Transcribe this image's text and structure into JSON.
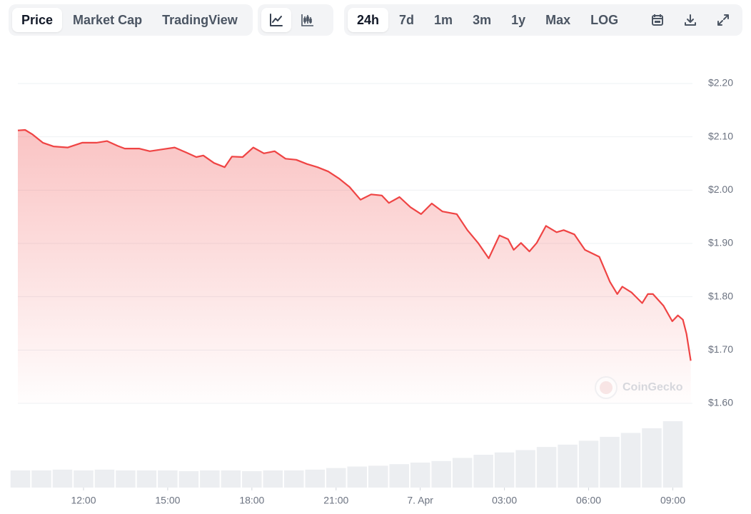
{
  "toolbar": {
    "views": [
      "Price",
      "Market Cap",
      "TradingView"
    ],
    "ranges": [
      "24h",
      "7d",
      "1m",
      "3m",
      "1y",
      "Max",
      "LOG"
    ]
  },
  "chart_data": {
    "type": "line",
    "watermark": "CoinGecko",
    "color": "#ef4444",
    "x": [
      9.66,
      9.92,
      10.17,
      10.55,
      10.93,
      11.44,
      11.95,
      12.46,
      12.84,
      13.22,
      13.47,
      13.98,
      14.36,
      14.87,
      15.25,
      15.64,
      16.02,
      16.27,
      16.65,
      17.03,
      17.29,
      17.67,
      18.05,
      18.43,
      18.81,
      19.2,
      19.58,
      19.96,
      20.34,
      20.72,
      21.1,
      21.48,
      21.87,
      22.25,
      22.63,
      22.88,
      23.26,
      23.65,
      24.03,
      24.41,
      24.79,
      25.3,
      25.68,
      26.06,
      26.44,
      26.82,
      27.13,
      27.33,
      27.59,
      27.89,
      28.15,
      28.48,
      28.86,
      29.11,
      29.49,
      29.87,
      30.38,
      30.76,
      31.02,
      31.2,
      31.53,
      31.91,
      32.11,
      32.29,
      32.67,
      32.98,
      33.18,
      33.36,
      33.49,
      33.64
    ],
    "values": [
      2.112,
      2.113,
      2.105,
      2.089,
      2.082,
      2.08,
      2.089,
      2.089,
      2.092,
      2.083,
      2.078,
      2.078,
      2.073,
      2.077,
      2.08,
      2.071,
      2.062,
      2.065,
      2.051,
      2.043,
      2.063,
      2.062,
      2.08,
      2.069,
      2.073,
      2.059,
      2.057,
      2.049,
      2.043,
      2.035,
      2.022,
      2.006,
      1.982,
      1.992,
      1.99,
      1.976,
      1.987,
      1.968,
      1.955,
      1.975,
      1.96,
      1.955,
      1.925,
      1.901,
      1.872,
      1.915,
      1.908,
      1.888,
      1.901,
      1.885,
      1.901,
      1.933,
      1.921,
      1.925,
      1.917,
      1.888,
      1.875,
      1.828,
      1.805,
      1.819,
      1.808,
      1.788,
      1.805,
      1.805,
      1.783,
      1.754,
      1.765,
      1.757,
      1.73,
      1.68
    ],
    "xlim": [
      9.66,
      33.7
    ],
    "xticks": [
      {
        "value": 12,
        "label": "12:00"
      },
      {
        "value": 15,
        "label": "15:00"
      },
      {
        "value": 18,
        "label": "18:00"
      },
      {
        "value": 21,
        "label": "21:00"
      },
      {
        "value": 24,
        "label": "7. Apr"
      },
      {
        "value": 27,
        "label": "03:00"
      },
      {
        "value": 30,
        "label": "06:00"
      },
      {
        "value": 33,
        "label": "09:00"
      }
    ],
    "ylim": [
      1.6,
      2.2
    ],
    "yticks": [
      {
        "value": 2.2,
        "label": "$2.20"
      },
      {
        "value": 2.1,
        "label": "$2.10"
      },
      {
        "value": 2.0,
        "label": "$2.00"
      },
      {
        "value": 1.9,
        "label": "$1.90"
      },
      {
        "value": 1.8,
        "label": "$1.80"
      },
      {
        "value": 1.7,
        "label": "$1.70"
      },
      {
        "value": 1.6,
        "label": "$1.60"
      }
    ],
    "grid": true,
    "volume": {
      "color": "#eceef1",
      "x": [
        9.75,
        10.5,
        11.25,
        12,
        12.75,
        13.5,
        14.25,
        15,
        15.75,
        16.5,
        17.25,
        18,
        18.75,
        19.5,
        20.25,
        21,
        21.75,
        22.5,
        23.25,
        24,
        24.75,
        25.5,
        26.25,
        27,
        27.75,
        28.5,
        29.25,
        30,
        30.75,
        31.5,
        32.25,
        33
      ],
      "values": [
        22,
        22,
        23,
        22,
        23,
        22,
        22,
        22,
        21,
        22,
        22,
        21,
        22,
        22,
        23,
        25,
        27,
        28,
        30,
        32,
        34,
        38,
        42,
        45,
        48,
        52,
        55,
        60,
        65,
        70,
        76,
        85
      ]
    }
  }
}
